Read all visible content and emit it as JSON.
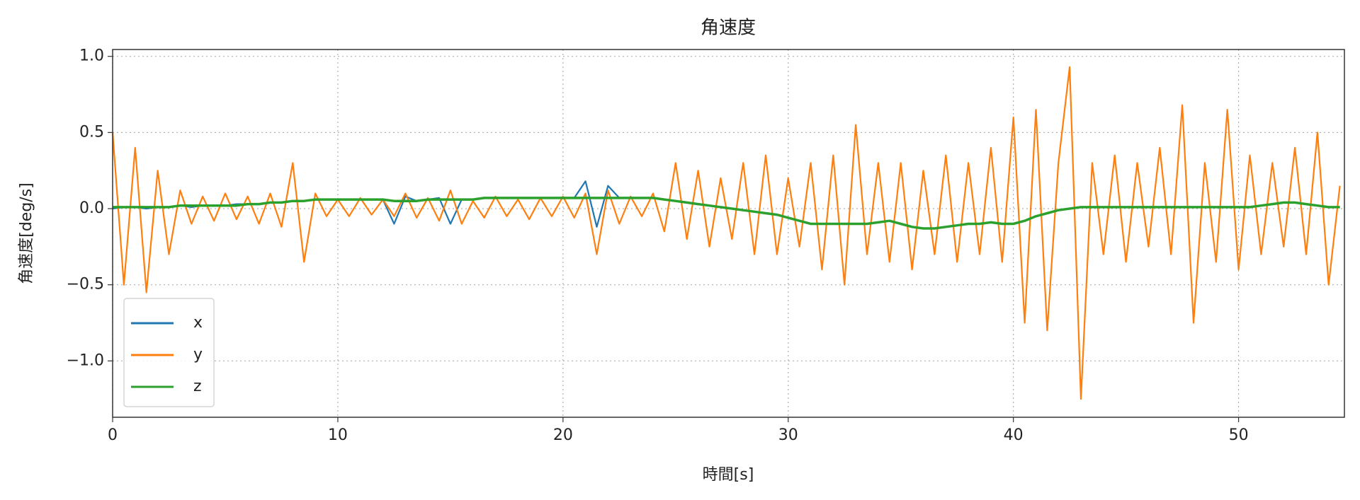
{
  "chart_data": {
    "type": "line",
    "title": "角速度",
    "xlabel": "時間[s]",
    "ylabel": "角速度[deg/s]",
    "xlim": [
      0,
      54.7
    ],
    "ylim": [
      -1.37,
      1.045
    ],
    "xticks": [
      0,
      10,
      20,
      30,
      40,
      50
    ],
    "yticks": [
      {
        "value": -1.0,
        "label": "−1.0"
      },
      {
        "value": -0.5,
        "label": "−0.5"
      },
      {
        "value": 0,
        "label": "0.0"
      },
      {
        "value": 0.5,
        "label": "0.5"
      },
      {
        "value": 1.0,
        "label": "1.0"
      }
    ],
    "grid": true,
    "legend": "lower left",
    "x": [
      0,
      0.5,
      1,
      1.5,
      2,
      2.5,
      3,
      3.5,
      4,
      4.5,
      5,
      5.5,
      6,
      6.5,
      7,
      7.5,
      8,
      8.5,
      9,
      9.5,
      10,
      10.5,
      11,
      11.5,
      12,
      12.5,
      13,
      13.5,
      14,
      14.5,
      15,
      15.5,
      16,
      16.5,
      17,
      17.5,
      18,
      18.5,
      19,
      19.5,
      20,
      20.5,
      21,
      21.5,
      22,
      22.5,
      23,
      23.5,
      24,
      24.5,
      25,
      25.5,
      26,
      26.5,
      27,
      27.5,
      28,
      28.5,
      29,
      29.5,
      30,
      30.5,
      31,
      31.5,
      32,
      32.5,
      33,
      33.5,
      34,
      34.5,
      35,
      35.5,
      36,
      36.5,
      37,
      37.5,
      38,
      38.5,
      39,
      39.5,
      40,
      40.5,
      41,
      41.5,
      42,
      42.5,
      43,
      43.5,
      44,
      44.5,
      45,
      45.5,
      46,
      46.5,
      47,
      47.5,
      48,
      48.5,
      49,
      49.5,
      50,
      50.5,
      51,
      51.5,
      52,
      52.5,
      53,
      53.5,
      54,
      54.5
    ],
    "series": [
      {
        "name": "x",
        "color": "#1f77b4",
        "values": [
          0.0,
          0.01,
          0.01,
          0.0,
          0.01,
          0.01,
          0.02,
          0.01,
          0.02,
          0.02,
          0.02,
          0.03,
          0.03,
          0.03,
          0.04,
          0.04,
          0.05,
          0.05,
          0.06,
          0.06,
          0.06,
          0.06,
          0.06,
          0.06,
          0.06,
          -0.1,
          0.08,
          0.05,
          0.06,
          0.07,
          -0.1,
          0.06,
          0.06,
          0.07,
          0.07,
          0.07,
          0.07,
          0.07,
          0.07,
          0.07,
          0.07,
          0.07,
          0.18,
          -0.12,
          0.15,
          0.07,
          0.07,
          0.07,
          0.07,
          0.06,
          0.05,
          0.04,
          0.03,
          0.02,
          0.01,
          0.0,
          -0.01,
          -0.02,
          -0.03,
          -0.04,
          -0.06,
          -0.08,
          -0.1,
          -0.1,
          -0.1,
          -0.1,
          -0.1,
          -0.1,
          -0.09,
          -0.08,
          -0.1,
          -0.12,
          -0.13,
          -0.13,
          -0.12,
          -0.11,
          -0.1,
          -0.1,
          -0.09,
          -0.1,
          -0.1,
          -0.08,
          -0.05,
          -0.03,
          -0.01,
          0.0,
          0.01,
          0.01,
          0.01,
          0.01,
          0.01,
          0.01,
          0.01,
          0.01,
          0.01,
          0.01,
          0.01,
          0.01,
          0.01,
          0.01,
          0.01,
          0.01,
          0.02,
          0.03,
          0.04,
          0.04,
          0.03,
          0.02,
          0.01,
          0.01
        ]
      },
      {
        "name": "y",
        "color": "#ff7f0e",
        "values": [
          0.5,
          -0.5,
          0.4,
          -0.55,
          0.25,
          -0.3,
          0.12,
          -0.1,
          0.08,
          -0.08,
          0.1,
          -0.07,
          0.08,
          -0.1,
          0.1,
          -0.12,
          0.3,
          -0.35,
          0.1,
          -0.05,
          0.06,
          -0.05,
          0.07,
          -0.04,
          0.06,
          -0.05,
          0.1,
          -0.06,
          0.07,
          -0.08,
          0.12,
          -0.1,
          0.05,
          -0.06,
          0.08,
          -0.05,
          0.06,
          -0.07,
          0.07,
          -0.05,
          0.08,
          -0.06,
          0.1,
          -0.3,
          0.12,
          -0.1,
          0.08,
          -0.05,
          0.1,
          -0.15,
          0.3,
          -0.2,
          0.25,
          -0.25,
          0.2,
          -0.2,
          0.3,
          -0.3,
          0.35,
          -0.3,
          0.2,
          -0.25,
          0.3,
          -0.4,
          0.35,
          -0.5,
          0.55,
          -0.3,
          0.3,
          -0.35,
          0.3,
          -0.4,
          0.25,
          -0.3,
          0.35,
          -0.35,
          0.3,
          -0.3,
          0.4,
          -0.35,
          0.6,
          -0.75,
          0.65,
          -0.8,
          0.3,
          0.93,
          -1.25,
          0.3,
          -0.3,
          0.35,
          -0.35,
          0.3,
          -0.25,
          0.4,
          -0.3,
          0.68,
          -0.75,
          0.3,
          -0.35,
          0.65,
          -0.4,
          0.35,
          -0.3,
          0.3,
          -0.25,
          0.4,
          -0.3,
          0.5,
          -0.5,
          0.15
        ]
      },
      {
        "name": "z",
        "color": "#2ca02c",
        "values": [
          0.01,
          0.01,
          0.01,
          0.01,
          0.01,
          0.01,
          0.02,
          0.02,
          0.02,
          0.02,
          0.02,
          0.02,
          0.03,
          0.03,
          0.04,
          0.04,
          0.05,
          0.05,
          0.06,
          0.06,
          0.06,
          0.06,
          0.06,
          0.06,
          0.06,
          0.05,
          0.05,
          0.05,
          0.06,
          0.06,
          0.06,
          0.06,
          0.06,
          0.07,
          0.07,
          0.07,
          0.07,
          0.07,
          0.07,
          0.07,
          0.07,
          0.07,
          0.07,
          0.07,
          0.07,
          0.07,
          0.07,
          0.07,
          0.07,
          0.06,
          0.05,
          0.04,
          0.03,
          0.02,
          0.01,
          0.0,
          -0.01,
          -0.02,
          -0.03,
          -0.04,
          -0.06,
          -0.08,
          -0.1,
          -0.1,
          -0.1,
          -0.1,
          -0.1,
          -0.1,
          -0.09,
          -0.08,
          -0.1,
          -0.12,
          -0.13,
          -0.13,
          -0.12,
          -0.11,
          -0.1,
          -0.1,
          -0.09,
          -0.1,
          -0.1,
          -0.08,
          -0.05,
          -0.03,
          -0.01,
          0.0,
          0.01,
          0.01,
          0.01,
          0.01,
          0.01,
          0.01,
          0.01,
          0.01,
          0.01,
          0.01,
          0.01,
          0.01,
          0.01,
          0.01,
          0.01,
          0.01,
          0.02,
          0.03,
          0.04,
          0.04,
          0.03,
          0.02,
          0.01,
          0.01
        ]
      }
    ]
  }
}
